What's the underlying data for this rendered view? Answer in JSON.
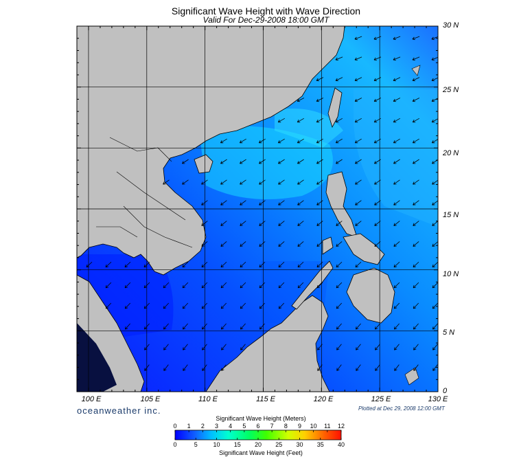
{
  "header": {
    "title": "Significant Wave Height with Wave Direction",
    "subtitle": "Valid For Dec-29-2008 18:00 GMT"
  },
  "map": {
    "lat_labels": [
      "30 N",
      "25 N",
      "20 N",
      "15 N",
      "10 N",
      "5 N",
      "0"
    ],
    "lon_labels": [
      "100 E",
      "105 E",
      "110 E",
      "115 E",
      "120 E",
      "125 E",
      "130 E"
    ],
    "lat_range": [
      0,
      30
    ],
    "lon_range": [
      99,
      130
    ],
    "land_color": "#c0c0c0",
    "wave_direction": "from northeast toward southwest"
  },
  "footer": {
    "brand": "oceanweather inc.",
    "plotted": "Plotted at Dec 29, 2008 12:00 GMT"
  },
  "colorbar": {
    "title_top": "Significant Wave Height (Meters)",
    "title_bottom": "Significant Wave Height (Feet)",
    "meters": [
      "0",
      "1",
      "2",
      "3",
      "4",
      "5",
      "6",
      "7",
      "8",
      "9",
      "10",
      "11",
      "12"
    ],
    "feet": [
      "0",
      "5",
      "10",
      "15",
      "20",
      "25",
      "30",
      "35",
      "40"
    ],
    "colors": [
      "#0000ff",
      "#0a5cff",
      "#00c8ff",
      "#00ffe0",
      "#00ff80",
      "#20ff00",
      "#a0ff00",
      "#ffff00",
      "#ffc000",
      "#ff6000",
      "#ff2000",
      "#e00000"
    ]
  }
}
